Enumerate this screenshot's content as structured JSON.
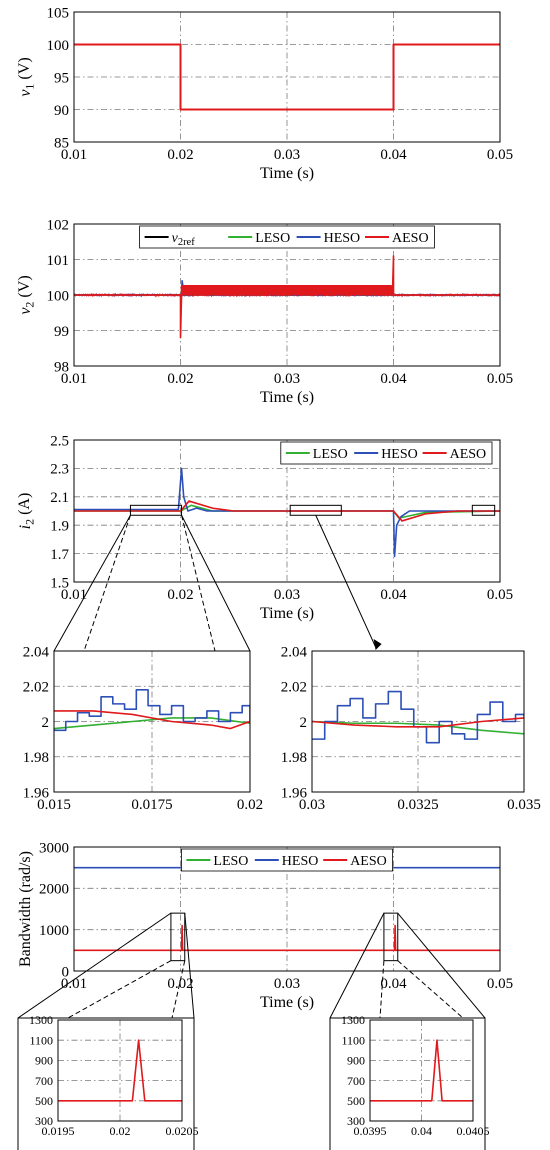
{
  "colors": {
    "ref": "#000000",
    "LESO": "#33b033",
    "HESO": "#2d4fb8",
    "AESO": "#e0191c"
  },
  "chart_data": [
    {
      "id": "p1",
      "type": "line",
      "xlabel": "Time (s)",
      "ylabel": "v_1 (V)",
      "xlim": [
        0.01,
        0.05
      ],
      "ylim": [
        85,
        105
      ],
      "xticks": [
        "0.01",
        "0.02",
        "0.03",
        "0.04",
        "0.05"
      ],
      "yticks": [
        "85",
        "90",
        "95",
        "100",
        "105"
      ],
      "grid": true,
      "series": [
        {
          "name": "v1",
          "color": "AESO",
          "x": [
            0.01,
            0.02,
            0.02,
            0.04,
            0.04,
            0.05
          ],
          "y": [
            100,
            100,
            90,
            90,
            100,
            100
          ]
        }
      ]
    },
    {
      "id": "p2",
      "type": "line",
      "xlabel": "Time (s)",
      "ylabel": "v_2 (V)",
      "xlim": [
        0.01,
        0.05
      ],
      "ylim": [
        98,
        102
      ],
      "xticks": [
        "0.01",
        "0.02",
        "0.03",
        "0.04",
        "0.05"
      ],
      "yticks": [
        "98",
        "99",
        "100",
        "101",
        "102"
      ],
      "grid": true,
      "legend": "top-center",
      "legend_entries": [
        {
          "label": "v_2ref",
          "color": "ref"
        },
        {
          "label": "LESO",
          "color": "LESO"
        },
        {
          "label": "HESO",
          "color": "HESO"
        },
        {
          "label": "AESO",
          "color": "AESO"
        }
      ],
      "series": [
        {
          "name": "v_2ref",
          "color": "ref",
          "x": [
            0.01,
            0.05
          ],
          "y": [
            100,
            100
          ]
        },
        {
          "name": "HESO",
          "color": "HESO",
          "x": [
            0.0201,
            0.02015,
            0.0203
          ],
          "y": [
            100,
            100.4,
            100.1
          ]
        },
        {
          "name": "AESO",
          "color": "AESO",
          "noise": {
            "x": [
              0.01,
              0.05
            ],
            "y": [
              99.97,
              100.03
            ]
          },
          "x": [
            0.01,
            0.02,
            0.02,
            0.0201,
            0.0201,
            0.0398,
            0.0399,
            0.04,
            0.04,
            0.0401,
            0.05
          ],
          "y": [
            100,
            100,
            98.8,
            100,
            100.25,
            100.25,
            100,
            101.1,
            100,
            100,
            100
          ]
        }
      ]
    },
    {
      "id": "p3",
      "type": "line",
      "xlabel": "Time (s)",
      "ylabel": "i_2 (A)",
      "xlim": [
        0.01,
        0.05
      ],
      "ylim": [
        1.5,
        2.5
      ],
      "xticks": [
        "0.01",
        "0.02",
        "0.03",
        "0.04",
        "0.05"
      ],
      "yticks": [
        "1.5",
        "1.7",
        "1.9",
        "2.1",
        "2.3",
        "2.5"
      ],
      "grid": true,
      "legend": "top-right",
      "legend_entries": [
        {
          "label": "LESO",
          "color": "LESO"
        },
        {
          "label": "HESO",
          "color": "HESO"
        },
        {
          "label": "AESO",
          "color": "AESO"
        }
      ],
      "series": [
        {
          "name": "LESO",
          "color": "LESO",
          "x": [
            0.01,
            0.02,
            0.021,
            0.023,
            0.04,
            0.0405,
            0.043,
            0.05
          ],
          "y": [
            2.0,
            2.0,
            2.04,
            2.0,
            2.0,
            1.95,
            1.99,
            2.0
          ]
        },
        {
          "name": "HESO",
          "color": "HESO",
          "x": [
            0.01,
            0.0198,
            0.0201,
            0.0203,
            0.0207,
            0.0215,
            0.0225,
            0.04,
            0.0401,
            0.0403,
            0.0407,
            0.0415,
            0.05
          ],
          "y": [
            2.01,
            2.01,
            2.3,
            2.1,
            2.0,
            2.02,
            2.0,
            2.0,
            1.68,
            1.9,
            1.96,
            2.0,
            2.0
          ]
        },
        {
          "name": "AESO",
          "color": "AESO",
          "x": [
            0.01,
            0.02,
            0.0208,
            0.023,
            0.025,
            0.04,
            0.0408,
            0.043,
            0.046,
            0.05
          ],
          "y": [
            2.0,
            2.0,
            2.07,
            2.02,
            2.0,
            2.0,
            1.93,
            1.98,
            2.0,
            2.0
          ]
        }
      ]
    },
    {
      "id": "p4",
      "type": "line",
      "xlim": [
        0.015,
        0.02
      ],
      "ylim": [
        1.96,
        2.04
      ],
      "xticks": [
        "0.015",
        "0.0175",
        "0.02"
      ],
      "yticks": [
        "1.96",
        "1.98",
        "2",
        "2.02",
        "2.04"
      ],
      "grid": true,
      "series": [
        {
          "name": "LESO",
          "color": "LESO",
          "x": [
            0.015,
            0.016,
            0.017,
            0.018,
            0.019,
            0.02
          ],
          "y": [
            1.996,
            1.998,
            2.0,
            2.002,
            2.002,
            1.999
          ]
        },
        {
          "name": "HESO",
          "color": "HESO",
          "x": [
            0.015,
            0.0153,
            0.0156,
            0.0159,
            0.0162,
            0.0165,
            0.0168,
            0.0171,
            0.0174,
            0.0177,
            0.018,
            0.0183,
            0.0186,
            0.0189,
            0.0192,
            0.0195,
            0.0198,
            0.02
          ],
          "y": [
            1.995,
            2.0,
            2.005,
            2.003,
            2.014,
            2.01,
            2.007,
            2.018,
            2.009,
            2.004,
            2.009,
            2.0,
            2.002,
            2.006,
            2.0,
            2.005,
            2.009,
            2.0
          ]
        },
        {
          "name": "AESO",
          "color": "AESO",
          "x": [
            0.015,
            0.016,
            0.017,
            0.018,
            0.019,
            0.0195,
            0.02
          ],
          "y": [
            2.006,
            2.006,
            2.004,
            2.0,
            1.998,
            1.996,
            2.0
          ]
        }
      ]
    },
    {
      "id": "p5",
      "type": "line",
      "xlim": [
        0.03,
        0.035
      ],
      "ylim": [
        1.96,
        2.04
      ],
      "xticks": [
        "0.03",
        "0.0325",
        "0.035"
      ],
      "yticks": [
        "1.96",
        "1.98",
        "2",
        "2.02",
        "2.04"
      ],
      "grid": true,
      "series": [
        {
          "name": "LESO",
          "color": "LESO",
          "x": [
            0.03,
            0.031,
            0.032,
            0.033,
            0.034,
            0.035
          ],
          "y": [
            2.0,
            1.999,
            1.999,
            1.998,
            1.995,
            1.993
          ]
        },
        {
          "name": "HESO",
          "color": "HESO",
          "x": [
            0.03,
            0.0303,
            0.0306,
            0.0309,
            0.0312,
            0.0315,
            0.0318,
            0.0321,
            0.0324,
            0.0327,
            0.033,
            0.0333,
            0.0336,
            0.0339,
            0.0342,
            0.0345,
            0.0348,
            0.035
          ],
          "y": [
            1.99,
            2.0,
            2.009,
            2.013,
            2.002,
            2.01,
            2.017,
            2.007,
            1.997,
            1.988,
            2.0,
            1.993,
            1.99,
            2.004,
            2.011,
            2.0,
            2.004,
            2.003
          ]
        },
        {
          "name": "AESO",
          "color": "AESO",
          "x": [
            0.03,
            0.031,
            0.032,
            0.033,
            0.034,
            0.035
          ],
          "y": [
            2.0,
            1.998,
            1.997,
            1.997,
            2.0,
            2.002
          ]
        }
      ]
    },
    {
      "id": "p6",
      "type": "line",
      "xlabel": "Time (s)",
      "ylabel": "Bandwidth (rad/s)",
      "xlim": [
        0.01,
        0.05
      ],
      "ylim": [
        0,
        3000
      ],
      "xticks": [
        "0.01",
        "0.02",
        "0.03",
        "0.04",
        "0.05"
      ],
      "yticks": [
        "0",
        "1000",
        "2000",
        "3000"
      ],
      "grid": true,
      "legend": "top-center",
      "legend_entries": [
        {
          "label": "LESO",
          "color": "LESO"
        },
        {
          "label": "HESO",
          "color": "HESO"
        },
        {
          "label": "AESO",
          "color": "AESO"
        }
      ],
      "series": [
        {
          "name": "HESO",
          "color": "HESO",
          "x": [
            0.01,
            0.05
          ],
          "y": [
            2500,
            2500
          ]
        },
        {
          "name": "AESO",
          "color": "AESO",
          "x": [
            0.01,
            0.0201,
            0.02015,
            0.0202,
            0.0401,
            0.04015,
            0.0402,
            0.05
          ],
          "y": [
            500,
            500,
            1100,
            500,
            500,
            1100,
            500,
            500
          ]
        }
      ]
    },
    {
      "id": "p7",
      "type": "line",
      "xlim": [
        0.0195,
        0.0205
      ],
      "ylim": [
        300,
        1300
      ],
      "xticks": [
        "0.0195",
        "0.02",
        "0.0205"
      ],
      "yticks": [
        "300",
        "500",
        "700",
        "900",
        "1100",
        "1300"
      ],
      "grid": true,
      "series": [
        {
          "name": "AESO",
          "color": "AESO",
          "x": [
            0.0195,
            0.02,
            0.0201,
            0.02015,
            0.0202,
            0.0205
          ],
          "y": [
            500,
            500,
            500,
            1100,
            500,
            500
          ]
        }
      ]
    },
    {
      "id": "p8",
      "type": "line",
      "xlim": [
        0.0395,
        0.0405
      ],
      "ylim": [
        300,
        1300
      ],
      "xticks": [
        "0.0395",
        "0.04",
        "0.0405"
      ],
      "yticks": [
        "300",
        "500",
        "700",
        "900",
        "1100",
        "1300"
      ],
      "grid": true,
      "series": [
        {
          "name": "AESO",
          "color": "AESO",
          "x": [
            0.0395,
            0.04,
            0.0401,
            0.04015,
            0.0402,
            0.0405
          ],
          "y": [
            500,
            500,
            500,
            1100,
            500,
            500
          ]
        }
      ]
    }
  ]
}
